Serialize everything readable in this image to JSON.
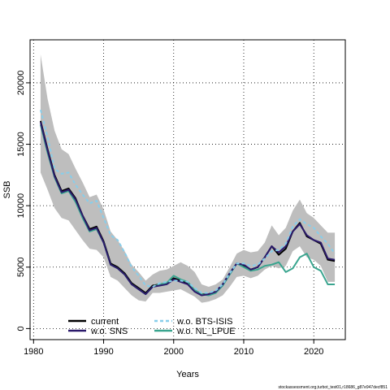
{
  "chart_data": {
    "type": "line",
    "xlabel": "Years",
    "ylabel": "SSB",
    "xlim": [
      1979.5,
      2024.5
    ],
    "ylim": [
      -900,
      23500
    ],
    "xticks": [
      1980,
      1990,
      2000,
      2010,
      2020
    ],
    "yticks": [
      0,
      5000,
      10000,
      15000,
      20000
    ],
    "grid": true,
    "legend_position": "bottom-left",
    "x": [
      1981,
      1982,
      1983,
      1984,
      1985,
      1986,
      1987,
      1988,
      1989,
      1990,
      1991,
      1992,
      1993,
      1994,
      1995,
      1996,
      1997,
      1998,
      1999,
      2000,
      2001,
      2002,
      2003,
      2004,
      2005,
      2006,
      2007,
      2008,
      2009,
      2010,
      2011,
      2012,
      2013,
      2014,
      2015,
      2016,
      2017,
      2018,
      2019,
      2020,
      2021,
      2022,
      2023
    ],
    "confidence_band": {
      "color": "#bebebe",
      "upper": [
        22300,
        18700,
        16100,
        14600,
        14200,
        13000,
        11900,
        10700,
        10900,
        9700,
        7900,
        7200,
        6300,
        5200,
        4600,
        3900,
        4400,
        4700,
        4800,
        5100,
        5400,
        5100,
        4600,
        3600,
        3400,
        3600,
        4000,
        5000,
        6100,
        6400,
        6200,
        6300,
        7000,
        8400,
        7600,
        8200,
        9600,
        10500,
        9400,
        9000,
        8400,
        7800,
        7800
      ],
      "lower": [
        12700,
        11300,
        9800,
        9000,
        8800,
        8000,
        7200,
        6500,
        6400,
        5800,
        4200,
        3900,
        3300,
        2700,
        2300,
        2200,
        2900,
        2900,
        3000,
        3100,
        3200,
        2900,
        2600,
        2100,
        2200,
        2400,
        2700,
        3400,
        4200,
        4300,
        4100,
        4300,
        4800,
        5100,
        4900,
        5100,
        6300,
        6700,
        5800,
        5600,
        5100,
        3800,
        3800
      ]
    },
    "series": [
      {
        "name": "current",
        "color": "#000000",
        "dash": "solid",
        "values": [
          16900,
          14600,
          12500,
          11200,
          11400,
          10600,
          9200,
          8100,
          8300,
          7100,
          5300,
          5000,
          4500,
          3700,
          3300,
          2900,
          3500,
          3600,
          3700,
          4100,
          3900,
          3700,
          3100,
          2800,
          2800,
          3000,
          3600,
          4500,
          5300,
          5100,
          4800,
          5000,
          5800,
          6700,
          6000,
          6500,
          7900,
          8600,
          7500,
          7200,
          6900,
          5600,
          5500
        ]
      },
      {
        "name": "w.o. SNS",
        "color": "#2b1a6b",
        "dash": "solid",
        "values": [
          16800,
          14500,
          12400,
          11100,
          11300,
          10500,
          9200,
          8000,
          8200,
          7000,
          5200,
          4900,
          4400,
          3600,
          3200,
          2800,
          3400,
          3500,
          3600,
          4000,
          3800,
          3600,
          3000,
          2700,
          2800,
          3000,
          3600,
          4500,
          5300,
          5200,
          4800,
          5000,
          5800,
          6700,
          6200,
          6700,
          7900,
          8500,
          7600,
          7200,
          7000,
          5700,
          5600
        ]
      },
      {
        "name": "w.o. BTS-ISIS",
        "color": "#87ceeb",
        "dash": "dashed",
        "values": [
          17800,
          15600,
          13000,
          12600,
          12700,
          11700,
          10900,
          10200,
          10400,
          9000,
          7600,
          7200,
          6200,
          5000,
          4300,
          3500,
          3400,
          3700,
          3800,
          3900,
          3900,
          3800,
          3300,
          2900,
          2900,
          3100,
          3600,
          4500,
          5300,
          5300,
          5100,
          5200,
          5700,
          6300,
          6400,
          6900,
          8300,
          8900,
          8500,
          8200,
          7500,
          6900,
          6100
        ]
      },
      {
        "name": "w.o. NL_LPUE",
        "color": "#3aa58f",
        "dash": "solid",
        "values": [
          16600,
          14300,
          12300,
          11000,
          11200,
          10300,
          9000,
          7900,
          8100,
          7000,
          5200,
          4900,
          4400,
          3600,
          3200,
          2800,
          3400,
          3600,
          3700,
          4300,
          4000,
          3800,
          3100,
          2800,
          2700,
          2900,
          3500,
          4400,
          5300,
          5000,
          4700,
          4800,
          5100,
          5200,
          5400,
          4600,
          4900,
          5800,
          6100,
          5000,
          4700,
          3600,
          3600
        ]
      }
    ]
  },
  "footnote": "stockassessment.org,turbot_test01,r18686_g87e947decf851"
}
